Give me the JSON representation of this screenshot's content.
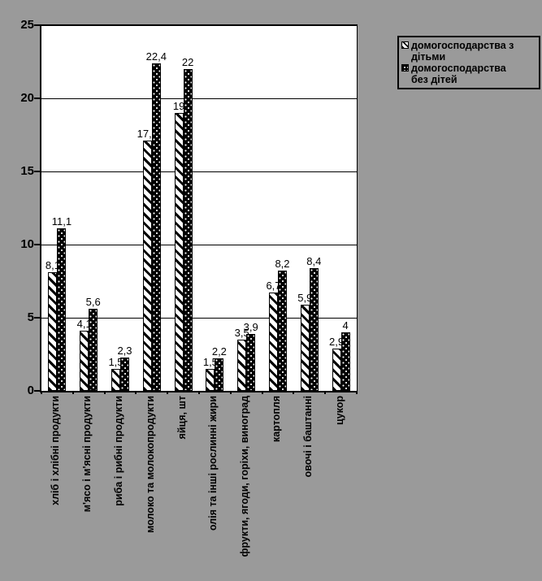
{
  "chart_data": {
    "type": "bar",
    "title": "",
    "xlabel": "",
    "ylabel": "",
    "categories": [
      "хліб і хлібні продукти",
      "м'ясо і м'ясні продукти",
      "риба і рибні продукти",
      "молоко та молокопродукти",
      "яйця, шт",
      "олія та інші рослинні жири",
      "фрукти, ягоди, горіхи, виноград",
      "картопля",
      "овочі і баштанні",
      "цукор"
    ],
    "series": [
      {
        "name": "домогосподарства з дітьми",
        "pattern": "diagonal-hatch",
        "values": [
          8.1,
          4.1,
          1.5,
          17.1,
          19,
          1.5,
          3.5,
          6.7,
          5.9,
          2.9
        ],
        "labels": [
          "8,1",
          "4,1",
          "1,5",
          "17,1",
          "19",
          "1,5",
          "3,5",
          "6,7",
          "5,9",
          "2,9"
        ]
      },
      {
        "name": "домогосподарства без дітей",
        "pattern": "black-white-dots",
        "values": [
          11.1,
          5.6,
          2.3,
          22.4,
          22,
          2.2,
          3.9,
          8.2,
          8.4,
          4
        ],
        "labels": [
          "11,1",
          "5,6",
          "2,3",
          "22,4",
          "22",
          "2,2",
          "3,9",
          "8,2",
          "8,4",
          "4"
        ]
      }
    ],
    "ylim": [
      0,
      25
    ],
    "yticks": [
      0,
      5,
      10,
      15,
      20,
      25
    ],
    "grid": true,
    "legend_position": "right",
    "plot_background": "#FFFFFF",
    "chart_background": "#9A9A9A",
    "bar_color": "#000000"
  }
}
